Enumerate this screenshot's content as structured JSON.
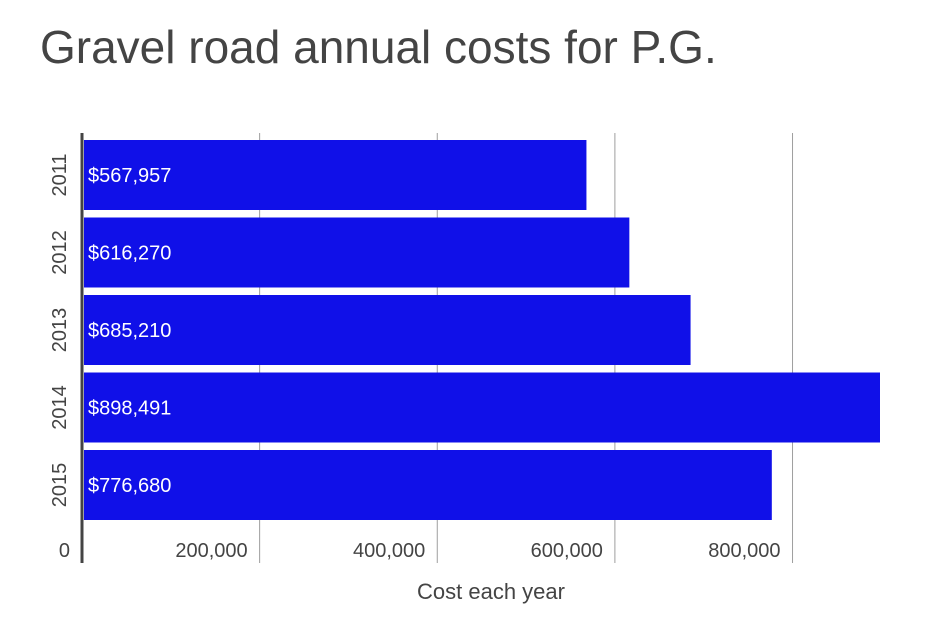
{
  "chart_data": {
    "type": "bar",
    "orientation": "horizontal",
    "title": "Gravel road annual costs for P.G.",
    "xlabel": "Cost each year",
    "ylabel": "",
    "categories": [
      "2011",
      "2012",
      "2013",
      "2014",
      "2015"
    ],
    "values": [
      567957,
      616270,
      685210,
      898491,
      776680
    ],
    "data_labels": [
      "$567,957",
      "$616,270",
      "$685,210",
      "$898,491",
      "$776,680"
    ],
    "xlim": [
      0,
      898491
    ],
    "x_ticks": [
      0,
      200000,
      400000,
      600000,
      800000
    ],
    "x_tick_labels": [
      "0",
      "200,000",
      "400,000",
      "600,000",
      "800,000"
    ],
    "bar_color": "#1010e8",
    "grid": true,
    "legend": "none"
  }
}
